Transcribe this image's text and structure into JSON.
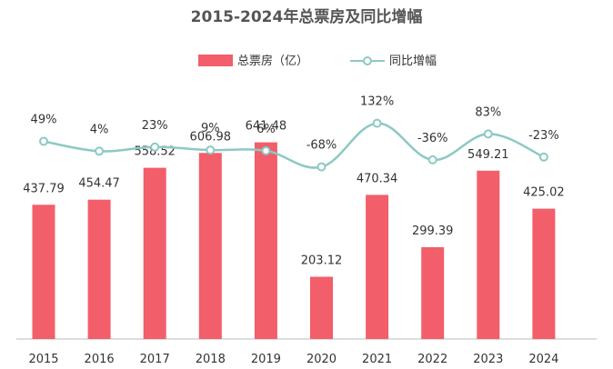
{
  "chart_data": {
    "type": "bar",
    "title": "2015-2024年总票房及同比增幅",
    "legend_position": "top",
    "grid": false,
    "categories": [
      "2015",
      "2016",
      "2017",
      "2018",
      "2019",
      "2020",
      "2021",
      "2022",
      "2023",
      "2024"
    ],
    "series": [
      {
        "name": "总票房（亿）",
        "type": "bar",
        "values": [
          437.79,
          454.47,
          558.52,
          606.98,
          641.48,
          203.12,
          470.34,
          299.39,
          549.21,
          425.02
        ],
        "labels": [
          "437.79",
          "454.47",
          "558.52",
          "606.98",
          "641.48",
          "203.12",
          "470.34",
          "299.39",
          "549.21",
          "425.02"
        ],
        "color": "#f25e6a"
      },
      {
        "name": "同比增幅",
        "type": "line",
        "smooth": true,
        "values": [
          49,
          4,
          23,
          9,
          6,
          -68,
          132,
          -36,
          83,
          -23
        ],
        "labels": [
          "49%",
          "4%",
          "23%",
          "9%",
          "6%",
          "-68%",
          "132%",
          "-36%",
          "83%",
          "-23%"
        ],
        "color": "#8cc9c4"
      }
    ]
  }
}
